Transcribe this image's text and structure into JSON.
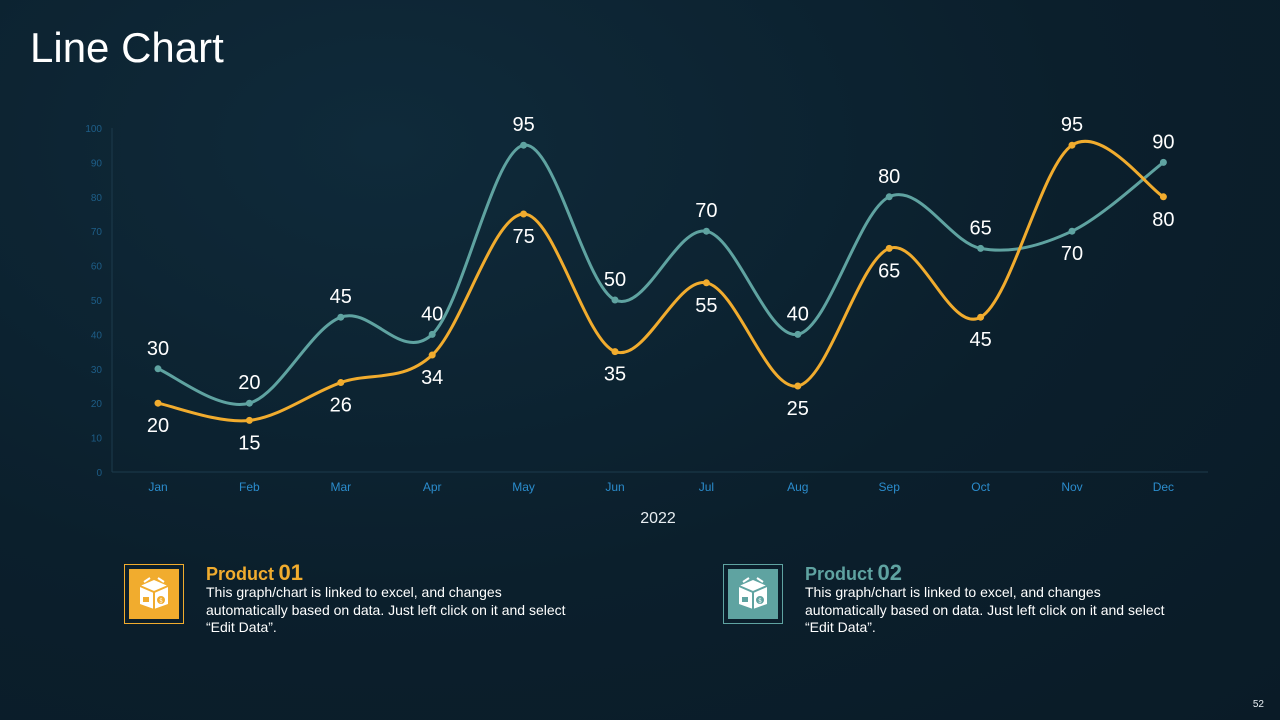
{
  "title": "Line Chart",
  "page_number": "52",
  "colors": {
    "series1": "#5fa3a1",
    "series2": "#f1ac2e",
    "axis_text": "#2b8ccc",
    "axis_line": "#1d3b4c"
  },
  "chart_data": {
    "type": "line",
    "title": "",
    "xlabel": "2022",
    "ylabel": "",
    "ylim": [
      0,
      100
    ],
    "yticks": [
      0,
      10,
      20,
      30,
      40,
      50,
      60,
      70,
      80,
      90,
      100
    ],
    "categories": [
      "Jan",
      "Feb",
      "Mar",
      "Apr",
      "May",
      "Jun",
      "Jul",
      "Aug",
      "Sep",
      "Oct",
      "Nov",
      "Dec"
    ],
    "series": [
      {
        "name": "Product 02",
        "color": "#5fa3a1",
        "values": [
          30,
          20,
          45,
          40,
          95,
          50,
          70,
          40,
          80,
          65,
          70,
          90
        ]
      },
      {
        "name": "Product 01",
        "color": "#f1ac2e",
        "values": [
          20,
          15,
          26,
          34,
          75,
          35,
          55,
          25,
          65,
          45,
          95,
          80
        ]
      }
    ]
  },
  "products": [
    {
      "word": "Product",
      "number": "01",
      "description": "This graph/chart is linked to excel, and changes automatically based on data. Just left click on it and select “Edit Data”.",
      "icon": "product-box-icon"
    },
    {
      "word": "Product",
      "number": "02",
      "description": "This graph/chart is linked to excel, and changes automatically based on data. Just left click on it and select “Edit Data”.",
      "icon": "product-box-icon"
    }
  ]
}
